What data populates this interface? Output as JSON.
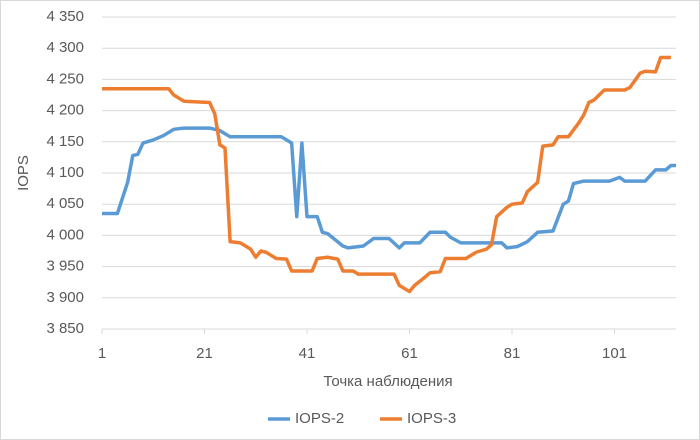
{
  "chart_data": {
    "type": "line",
    "x_label": "Точка наблюдения",
    "y_label": "IOPS",
    "xlim": [
      1,
      113
    ],
    "xticks": [
      1,
      21,
      41,
      61,
      81,
      101
    ],
    "ylim": [
      3850,
      4350
    ],
    "yticks": [
      {
        "value": 3850,
        "label": "3 850"
      },
      {
        "value": 3900,
        "label": "3 900"
      },
      {
        "value": 3950,
        "label": "3 950"
      },
      {
        "value": 4000,
        "label": "4 000"
      },
      {
        "value": 4050,
        "label": "4 050"
      },
      {
        "value": 4100,
        "label": "4 100"
      },
      {
        "value": 4150,
        "label": "4 150"
      },
      {
        "value": 4200,
        "label": "4 200"
      },
      {
        "value": 4250,
        "label": "4 250"
      },
      {
        "value": 4300,
        "label": "4 300"
      },
      {
        "value": 4350,
        "label": "4 350"
      }
    ],
    "grid": true,
    "legend": "bottom",
    "series": [
      {
        "name": "IOPS-2",
        "color": "#5b9bd5",
        "x": [
          1,
          4,
          5,
          6,
          7,
          8,
          9,
          11,
          13,
          15,
          17,
          22,
          24,
          26,
          36,
          37,
          38,
          39,
          40,
          41,
          43,
          44,
          45,
          48,
          49,
          52,
          54,
          57,
          59,
          60,
          63,
          65,
          68,
          69,
          71,
          79,
          80,
          82,
          84,
          86,
          89,
          91,
          92,
          93,
          95,
          100,
          102,
          103,
          107,
          109,
          111,
          112,
          113
        ],
        "values": [
          4035,
          4035,
          4060,
          4085,
          4128,
          4130,
          4148,
          4153,
          4160,
          4170,
          4172,
          4172,
          4168,
          4158,
          4158,
          4153,
          4148,
          4030,
          4148,
          4030,
          4030,
          4005,
          4003,
          3983,
          3980,
          3983,
          3995,
          3995,
          3980,
          3988,
          3988,
          4005,
          4005,
          3997,
          3988,
          3988,
          3980,
          3982,
          3990,
          4005,
          4007,
          4050,
          4055,
          4083,
          4087,
          4087,
          4093,
          4087,
          4087,
          4105,
          4105,
          4112,
          4112
        ]
      },
      {
        "name": "IOPS-3",
        "color": "#ed7d31",
        "x": [
          1,
          14,
          15,
          17,
          22,
          23,
          24,
          25,
          26,
          28,
          30,
          31,
          32,
          33,
          35,
          37,
          38,
          42,
          43,
          45,
          47,
          48,
          50,
          51,
          58,
          59,
          61,
          62,
          64,
          65,
          67,
          68,
          72,
          74,
          76,
          77,
          78,
          80,
          81,
          83,
          84,
          86,
          87,
          89,
          90,
          92,
          94,
          95,
          96,
          97,
          99,
          103,
          104,
          106,
          107,
          109,
          110,
          112
        ],
        "values": [
          4235,
          4235,
          4225,
          4215,
          4213,
          4195,
          4145,
          4140,
          3990,
          3988,
          3978,
          3965,
          3975,
          3973,
          3963,
          3962,
          3943,
          3943,
          3963,
          3965,
          3962,
          3943,
          3943,
          3938,
          3938,
          3920,
          3910,
          3920,
          3933,
          3940,
          3942,
          3963,
          3963,
          3973,
          3978,
          3985,
          4030,
          4045,
          4050,
          4052,
          4070,
          4085,
          4143,
          4145,
          4158,
          4158,
          4180,
          4193,
          4213,
          4217,
          4233,
          4233,
          4237,
          4260,
          4263,
          4262,
          4285,
          4285
        ]
      }
    ]
  }
}
